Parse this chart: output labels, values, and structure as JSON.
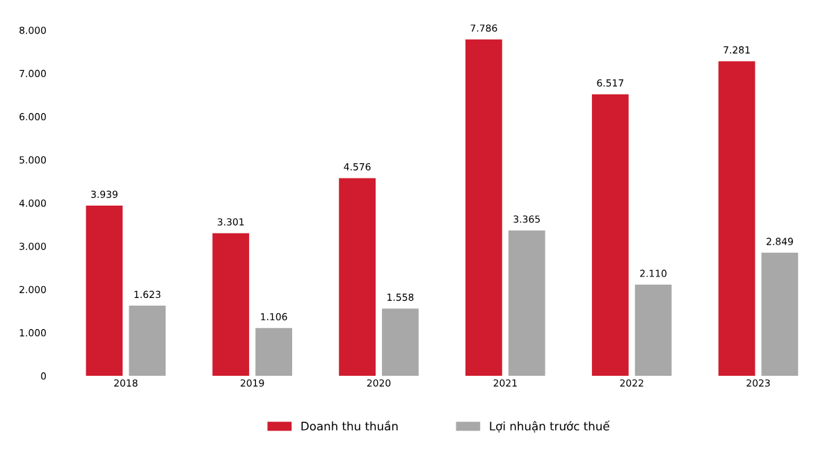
{
  "chart_data": {
    "type": "bar",
    "categories": [
      "2018",
      "2019",
      "2020",
      "2021",
      "2022",
      "2023"
    ],
    "series": [
      {
        "name": "Doanh thu thuần",
        "color": "#d01c2e",
        "values": [
          3939,
          3301,
          4576,
          7786,
          6517,
          7281
        ],
        "value_labels": [
          "3.939",
          "3.301",
          "4.576",
          "7.786",
          "6.517",
          "7.281"
        ]
      },
      {
        "name": "Lợi nhuận trước thuế",
        "color": "#a8a8a8",
        "values": [
          1623,
          1106,
          1558,
          3365,
          2110,
          2849
        ],
        "value_labels": [
          "1.623",
          "1.106",
          "1.558",
          "3.365",
          "2.110",
          "2.849"
        ]
      }
    ],
    "ylim": [
      0,
      8000
    ],
    "yticks": [
      {
        "value": 0,
        "label": "0"
      },
      {
        "value": 1000,
        "label": "1.000"
      },
      {
        "value": 2000,
        "label": "2.000"
      },
      {
        "value": 3000,
        "label": "3.000"
      },
      {
        "value": 4000,
        "label": "4.000"
      },
      {
        "value": 5000,
        "label": "5.000"
      },
      {
        "value": 6000,
        "label": "6.000"
      },
      {
        "value": 7000,
        "label": "7.000"
      },
      {
        "value": 8000,
        "label": "8.000"
      }
    ],
    "grid": false,
    "legend": "bottom"
  }
}
